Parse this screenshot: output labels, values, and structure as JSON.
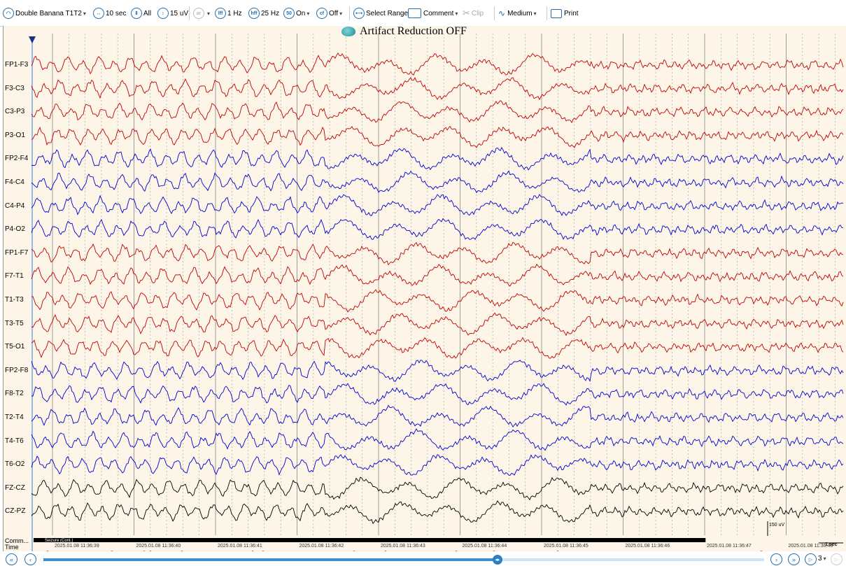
{
  "toolbar": {
    "montage": "Double Banana T1T2",
    "timebase": "10 sec",
    "channels": "All",
    "sensitivity": "15 uV",
    "lff_icon": "lff",
    "lff": "1 Hz",
    "hff_icon": "hff",
    "hff": "25 Hz",
    "notch_icon": "50",
    "notch": "On",
    "cf_icon": "cf",
    "cf": "Off",
    "select_range": "Select Range",
    "comment": "Comment",
    "clip": "Clip",
    "medium": "Medium",
    "print": "Print"
  },
  "title": "Artifact Reduction OFF",
  "channels": [
    {
      "name": "FP1-F3",
      "color": "#c00000"
    },
    {
      "name": "F3-C3",
      "color": "#c00000"
    },
    {
      "name": "C3-P3",
      "color": "#c00000"
    },
    {
      "name": "P3-O1",
      "color": "#c00000"
    },
    {
      "name": "FP2-F4",
      "color": "#0000cc"
    },
    {
      "name": "F4-C4",
      "color": "#0000cc"
    },
    {
      "name": "C4-P4",
      "color": "#0000cc"
    },
    {
      "name": "P4-O2",
      "color": "#0000cc"
    },
    {
      "name": "FP1-F7",
      "color": "#c00000"
    },
    {
      "name": "F7-T1",
      "color": "#c00000"
    },
    {
      "name": "T1-T3",
      "color": "#c00000"
    },
    {
      "name": "T3-T5",
      "color": "#c00000"
    },
    {
      "name": "T5-O1",
      "color": "#c00000"
    },
    {
      "name": "FP2-F8",
      "color": "#0000cc"
    },
    {
      "name": "F8-T2",
      "color": "#0000cc"
    },
    {
      "name": "T2-T4",
      "color": "#0000cc"
    },
    {
      "name": "T4-T6",
      "color": "#0000cc"
    },
    {
      "name": "T6-O2",
      "color": "#0000cc"
    },
    {
      "name": "FZ-CZ",
      "color": "#000000"
    },
    {
      "name": "CZ-PZ",
      "color": "#000000"
    }
  ],
  "bottom": {
    "comm_label": "Comm...",
    "time_label": "Time",
    "seizure_label": "Seizure (Cont.)",
    "scale_label": "150 uV",
    "sec_label": "1 sec",
    "page": "3"
  },
  "timestamps": [
    "2025.01.08 11:36:39",
    "2025.01.08 11:36:40",
    "2025.01.08 11:36:41",
    "2025.01.08 11:36:42",
    "2025.01.08 11:36:43",
    "2025.01.08 11:36:44",
    "2025.01.08 11:36:45",
    "2025.01.08 11:36:46",
    "2025.01.08 11:36:47",
    "2025.01.08 11:36:48"
  ],
  "seizure_progress": 0.83,
  "scroll_progress": 0.63
}
